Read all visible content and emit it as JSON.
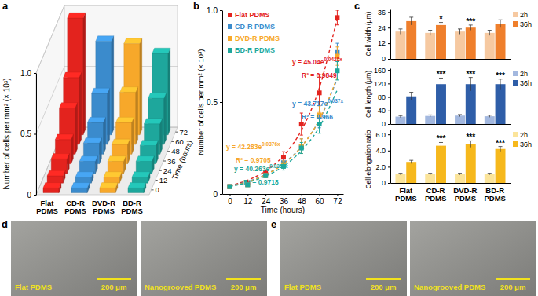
{
  "chart_data": [
    {
      "type": "bar3d",
      "panel": "a",
      "categories": [
        "Flat PDMS",
        "CD-R PDMS",
        "DVD-R PDMS",
        "BD-R PDMS"
      ],
      "colors": [
        "#e3231e",
        "#3b8bcc",
        "#f7a82a",
        "#1ea79c"
      ],
      "depth": [
        0,
        12,
        24,
        36,
        48,
        60,
        72
      ],
      "depth_label": "Time (hours)",
      "ylabel": "Number of cells per mm² (× 10³)",
      "ylim": [
        0,
        1
      ],
      "yticks": [
        0,
        0.5,
        {
          "value": 1,
          "label": "1.0"
        }
      ],
      "grid": true,
      "values": [
        [
          0.04,
          0.06,
          0.12,
          0.2,
          0.38,
          0.55,
          0.96
        ],
        [
          0.04,
          0.05,
          0.1,
          0.17,
          0.26,
          0.42,
          0.77
        ],
        [
          0.04,
          0.05,
          0.1,
          0.16,
          0.26,
          0.43,
          0.75
        ],
        [
          0.04,
          0.05,
          0.1,
          0.15,
          0.25,
          0.38,
          0.67
        ]
      ]
    },
    {
      "type": "scatter",
      "panel": "b",
      "xlabel": "Time (hours)",
      "ylabel": "Number of cells per mm² (× 10³)",
      "x": [
        0,
        12,
        24,
        36,
        48,
        60,
        72
      ],
      "xlim": [
        -5,
        76
      ],
      "xticks": [
        0,
        12,
        24,
        36,
        48,
        60,
        72
      ],
      "ylim": [
        0,
        1
      ],
      "yticks": [
        0,
        0.5,
        {
          "value": 1,
          "label": "1.0"
        }
      ],
      "legend": "upper left",
      "series": [
        {
          "name": "Flat PDMS",
          "color": "#e3231e",
          "marker": "square",
          "values": [
            0.04,
            0.06,
            0.12,
            0.2,
            0.38,
            0.55,
            0.96
          ],
          "errors": [
            0.005,
            0.01,
            0.01,
            0.03,
            0.06,
            0.1,
            0.04
          ]
        },
        {
          "name": "CD-R PDMS",
          "color": "#3b8bcc",
          "marker": "square",
          "values": [
            0.04,
            0.05,
            0.1,
            0.17,
            0.26,
            0.42,
            0.77
          ],
          "errors": [
            0.005,
            0.008,
            0.01,
            0.02,
            0.04,
            0.06,
            0.05
          ]
        },
        {
          "name": "DVD-R PDMS",
          "color": "#f7a82a",
          "marker": "square",
          "values": [
            0.04,
            0.05,
            0.1,
            0.16,
            0.26,
            0.43,
            0.75
          ],
          "errors": [
            0.005,
            0.008,
            0.01,
            0.02,
            0.04,
            0.05,
            0.05
          ]
        },
        {
          "name": "BD-R PDMS",
          "color": "#1ea79c",
          "marker": "square",
          "values": [
            0.04,
            0.05,
            0.1,
            0.15,
            0.25,
            0.38,
            0.67
          ],
          "errors": [
            0.005,
            0.008,
            0.01,
            0.02,
            0.03,
            0.05,
            0.05
          ]
        },
        {
          "type": "line",
          "line_style": "dashed",
          "color": "#e3231e",
          "values": [
            0.045,
            0.075,
            0.125,
            0.208,
            0.346,
            0.577,
            0.96
          ],
          "equation": "y = 45.04e",
          "exponent": "0.0425x",
          "r2": "R² = 0.9849"
        },
        {
          "type": "line",
          "line_style": "dashed",
          "color": "#3b8bcc",
          "values": [
            0.044,
            0.068,
            0.106,
            0.166,
            0.258,
            0.402,
            0.627
          ],
          "equation": "y = 43.717e",
          "exponent": "0.037x",
          "r2": "R² = 0.966"
        },
        {
          "type": "line",
          "line_style": "dashed",
          "color": "#f7a82a",
          "values": [
            0.042,
            0.066,
            0.104,
            0.164,
            0.257,
            0.404,
            0.635
          ],
          "equation": "y = 42.283e",
          "exponent": "0.0376x",
          "r2": "R² = 0.9705"
        },
        {
          "type": "line",
          "line_style": "dashed",
          "color": "#1ea79c",
          "values": [
            0.04,
            0.063,
            0.097,
            0.151,
            0.235,
            0.364,
            0.566
          ],
          "equation": "y = 40.263e",
          "exponent": "0.0367x",
          "r2": "R² = 0.9718"
        }
      ]
    },
    {
      "type": "bar",
      "panel": "c",
      "ylabel": "Cell width (μm)",
      "categories": [
        "Flat PDMS",
        "CD-R PDMS",
        "DVD-R PDMS",
        "BD-R PDMS"
      ],
      "ylim": [
        0,
        38
      ],
      "yticks": [
        0,
        12,
        24,
        36
      ],
      "legend": "upper right",
      "tick_labels": "y",
      "series": [
        {
          "name": "2h",
          "color": "#f6c9a1",
          "values": [
            21,
            20,
            21,
            20
          ],
          "errors": [
            2,
            2,
            2,
            2
          ]
        },
        {
          "name": "36h",
          "color": "#ef7f2c",
          "values": [
            29,
            26,
            24,
            27
          ],
          "errors": [
            3,
            2,
            2,
            3
          ],
          "significance": [
            null,
            "*",
            "***",
            null
          ]
        }
      ]
    },
    {
      "type": "bar",
      "ylabel": "Cell length (μm)",
      "categories": [
        "Flat PDMS",
        "CD-R PDMS",
        "DVD-R PDMS",
        "BD-R PDMS"
      ],
      "ylim": [
        0,
        165
      ],
      "yticks": [
        0,
        40,
        80,
        120,
        160
      ],
      "legend": "upper right",
      "tick_labels": "y",
      "series": [
        {
          "name": "2h",
          "color": "#a3b8df",
          "values": [
            22,
            24,
            25,
            23
          ],
          "errors": [
            3,
            3,
            3,
            3
          ]
        },
        {
          "name": "36h",
          "color": "#2f5ea8",
          "values": [
            82,
            118,
            118,
            118
          ],
          "errors": [
            12,
            18,
            20,
            15
          ],
          "significance": [
            null,
            "***",
            "***",
            "***"
          ]
        }
      ]
    },
    {
      "type": "bar",
      "ylabel": "Cell elongation ratio",
      "categories": [
        "Flat PDMS",
        "CD-R PDMS",
        "DVD-R PDMS",
        "BD-R PDMS"
      ],
      "ylim": [
        0,
        6.6
      ],
      "yticks": [
        0,
        {
          "value": 2,
          "label": "2.0"
        },
        {
          "value": 4,
          "label": "4.0"
        },
        {
          "value": 6,
          "label": "6.0"
        }
      ],
      "legend": "upper right",
      "series": [
        {
          "name": "2h",
          "color": "#fbe49a",
          "values": [
            1.1,
            1.1,
            1.1,
            1.1
          ],
          "errors": [
            0.1,
            0.1,
            0.1,
            0.1
          ]
        },
        {
          "name": "36h",
          "color": "#f6b81c",
          "values": [
            2.6,
            4.6,
            4.8,
            4.2
          ],
          "errors": [
            0.2,
            0.4,
            0.4,
            0.3
          ],
          "significance": [
            null,
            "***",
            "***",
            "***"
          ]
        }
      ]
    }
  ],
  "images": [
    {
      "panel": "d",
      "items": [
        {
          "caption": "Flat PDMS",
          "scale_bar": "200 μm"
        },
        {
          "caption": "Nanogrooved PDMS",
          "scale_bar": "200 μm"
        }
      ]
    },
    {
      "panel": "e",
      "items": [
        {
          "caption": "Flat PDMS",
          "scale_bar": "200 μm"
        },
        {
          "caption": "Nanogrooved PDMS",
          "scale_bar": "200 μm"
        }
      ]
    }
  ]
}
